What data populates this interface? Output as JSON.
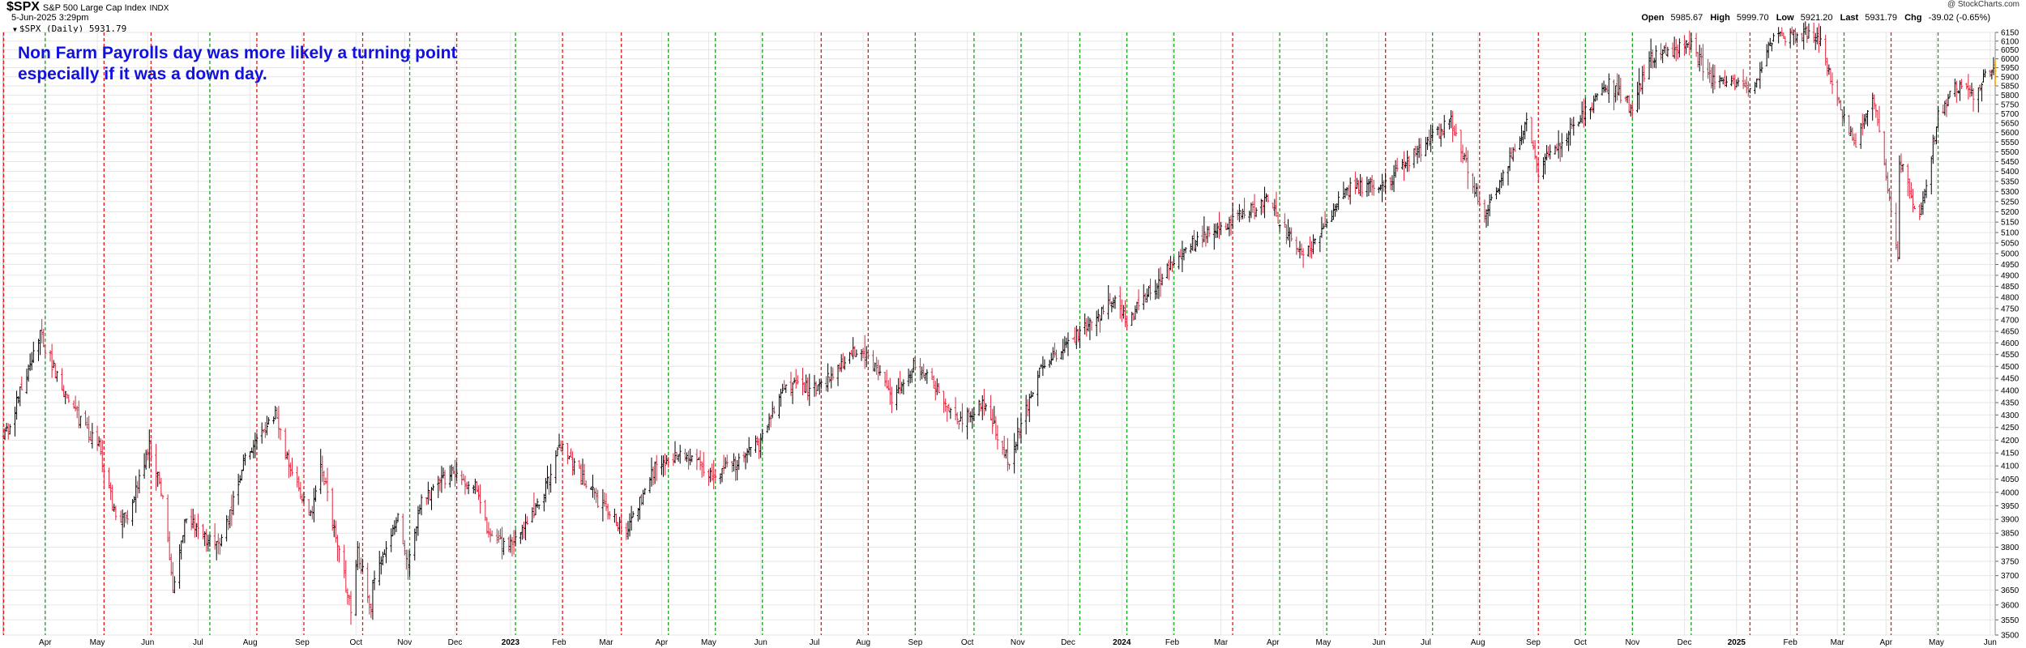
{
  "header": {
    "symbol": "$SPX",
    "name": "S&P 500 Large Cap Index",
    "exchange": "INDX",
    "date": "5-Jun-2025 3:29pm",
    "legend": "$SPX (Daily) 5931.79",
    "watermark": "@ StockCharts.com",
    "quote": {
      "open_label": "Open",
      "open": "5985.67",
      "high_label": "High",
      "high": "5999.70",
      "low_label": "Low",
      "low": "5921.20",
      "last_label": "Last",
      "last": "5931.79",
      "chg_label": "Chg",
      "chg": "-39.02 (-0.65%)"
    }
  },
  "annotation": {
    "line1": "Non Farm Payrolls day was more likely a turning point",
    "line2": "especially if it was a down day."
  },
  "colors": {
    "up_bar": "#000000",
    "down_bar": "#e0243c",
    "nfp_down_line": "#e01818",
    "nfp_up_line": "#18a018",
    "grid": "#e6e6e6",
    "annotation": "#1010e0",
    "last_bar": "#f0a000"
  },
  "chart_data": {
    "type": "ohlc",
    "interval": "daily",
    "x_range": [
      "2022-03-07",
      "2025-06-05"
    ],
    "ylim": [
      3500,
      6150
    ],
    "y_scale": "log",
    "y_axis_side": "right",
    "y_ticks": [
      3500,
      3550,
      3600,
      3650,
      3700,
      3750,
      3800,
      3850,
      3900,
      3950,
      4000,
      4050,
      4100,
      4150,
      4200,
      4250,
      4300,
      4350,
      4400,
      4450,
      4500,
      4550,
      4600,
      4650,
      4700,
      4750,
      4800,
      4850,
      4900,
      4950,
      5000,
      5050,
      5100,
      5150,
      5200,
      5250,
      5300,
      5350,
      5400,
      5450,
      5500,
      5550,
      5600,
      5650,
      5700,
      5750,
      5800,
      5850,
      5900,
      5950,
      6000,
      6050,
      6100,
      6150
    ],
    "x_labels": [
      {
        "label": "Apr",
        "date": "2022-04-01"
      },
      {
        "label": "May",
        "date": "2022-05-02"
      },
      {
        "label": "Jun",
        "date": "2022-06-01"
      },
      {
        "label": "Jul",
        "date": "2022-07-01"
      },
      {
        "label": "Aug",
        "date": "2022-08-01"
      },
      {
        "label": "Sep",
        "date": "2022-09-01"
      },
      {
        "label": "Oct",
        "date": "2022-10-03"
      },
      {
        "label": "Nov",
        "date": "2022-11-01"
      },
      {
        "label": "Dec",
        "date": "2022-12-01"
      },
      {
        "label": "2023",
        "date": "2023-01-03",
        "bold": true
      },
      {
        "label": "Feb",
        "date": "2023-02-01"
      },
      {
        "label": "Mar",
        "date": "2023-03-01"
      },
      {
        "label": "Apr",
        "date": "2023-04-03"
      },
      {
        "label": "May",
        "date": "2023-05-01"
      },
      {
        "label": "Jun",
        "date": "2023-06-01"
      },
      {
        "label": "Jul",
        "date": "2023-07-03"
      },
      {
        "label": "Aug",
        "date": "2023-08-01"
      },
      {
        "label": "Sep",
        "date": "2023-09-01"
      },
      {
        "label": "Oct",
        "date": "2023-10-02"
      },
      {
        "label": "Nov",
        "date": "2023-11-01"
      },
      {
        "label": "Dec",
        "date": "2023-12-01"
      },
      {
        "label": "2024",
        "date": "2024-01-02",
        "bold": true
      },
      {
        "label": "Feb",
        "date": "2024-02-01"
      },
      {
        "label": "Mar",
        "date": "2024-03-01"
      },
      {
        "label": "Apr",
        "date": "2024-04-01"
      },
      {
        "label": "May",
        "date": "2024-05-01"
      },
      {
        "label": "Jun",
        "date": "2024-06-03"
      },
      {
        "label": "Jul",
        "date": "2024-07-01"
      },
      {
        "label": "Aug",
        "date": "2024-08-01"
      },
      {
        "label": "Sep",
        "date": "2024-09-03"
      },
      {
        "label": "Oct",
        "date": "2024-10-01"
      },
      {
        "label": "Nov",
        "date": "2024-11-01"
      },
      {
        "label": "Dec",
        "date": "2024-12-02"
      },
      {
        "label": "2025",
        "date": "2025-01-02",
        "bold": true
      },
      {
        "label": "Feb",
        "date": "2025-02-03"
      },
      {
        "label": "Mar",
        "date": "2025-03-03"
      },
      {
        "label": "Apr",
        "date": "2025-04-01"
      },
      {
        "label": "May",
        "date": "2025-05-01"
      },
      {
        "label": "Jun",
        "date": "2025-06-02"
      }
    ],
    "nfp_markers": [
      {
        "date": "2022-03-04",
        "direction": "down"
      },
      {
        "date": "2022-04-01",
        "direction": "up"
      },
      {
        "date": "2022-05-06",
        "direction": "down"
      },
      {
        "date": "2022-06-03",
        "direction": "down"
      },
      {
        "date": "2022-07-08",
        "direction": "up"
      },
      {
        "date": "2022-08-05",
        "direction": "down"
      },
      {
        "date": "2022-09-02",
        "direction": "down"
      },
      {
        "date": "2022-10-07",
        "direction": "down"
      },
      {
        "date": "2022-11-04",
        "direction": "up"
      },
      {
        "date": "2022-12-02",
        "direction": "down"
      },
      {
        "date": "2023-01-06",
        "direction": "up"
      },
      {
        "date": "2023-02-03",
        "direction": "down"
      },
      {
        "date": "2023-03-10",
        "direction": "down"
      },
      {
        "date": "2023-04-07",
        "direction": "up"
      },
      {
        "date": "2023-05-05",
        "direction": "up"
      },
      {
        "date": "2023-06-02",
        "direction": "up"
      },
      {
        "date": "2023-07-07",
        "direction": "down"
      },
      {
        "date": "2023-08-04",
        "direction": "down"
      },
      {
        "date": "2023-09-01",
        "direction": "up"
      },
      {
        "date": "2023-10-06",
        "direction": "up"
      },
      {
        "date": "2023-11-03",
        "direction": "up"
      },
      {
        "date": "2023-12-08",
        "direction": "up"
      },
      {
        "date": "2024-01-05",
        "direction": "up"
      },
      {
        "date": "2024-02-02",
        "direction": "up"
      },
      {
        "date": "2024-03-08",
        "direction": "down"
      },
      {
        "date": "2024-04-05",
        "direction": "up"
      },
      {
        "date": "2024-05-03",
        "direction": "up"
      },
      {
        "date": "2024-06-07",
        "direction": "down"
      },
      {
        "date": "2024-07-05",
        "direction": "up"
      },
      {
        "date": "2024-08-02",
        "direction": "down"
      },
      {
        "date": "2024-09-06",
        "direction": "down"
      },
      {
        "date": "2024-10-04",
        "direction": "up"
      },
      {
        "date": "2024-11-01",
        "direction": "up"
      },
      {
        "date": "2024-12-06",
        "direction": "up"
      },
      {
        "date": "2025-01-10",
        "direction": "down"
      },
      {
        "date": "2025-02-07",
        "direction": "down"
      },
      {
        "date": "2025-03-07",
        "direction": "up"
      },
      {
        "date": "2025-04-04",
        "direction": "down"
      },
      {
        "date": "2025-05-02",
        "direction": "up"
      }
    ],
    "close_path": [
      [
        "2022-03-07",
        4201
      ],
      [
        "2022-03-14",
        4330
      ],
      [
        "2022-03-29",
        4631
      ],
      [
        "2022-04-11",
        4412
      ],
      [
        "2022-04-22",
        4271
      ],
      [
        "2022-05-03",
        4175
      ],
      [
        "2022-05-12",
        3930
      ],
      [
        "2022-05-19",
        3900
      ],
      [
        "2022-06-02",
        4176
      ],
      [
        "2022-06-09",
        4017
      ],
      [
        "2022-06-16",
        3667
      ],
      [
        "2022-06-24",
        3911
      ],
      [
        "2022-07-05",
        3831
      ],
      [
        "2022-07-14",
        3790
      ],
      [
        "2022-07-29",
        4130
      ],
      [
        "2022-08-16",
        4305
      ],
      [
        "2022-08-26",
        4057
      ],
      [
        "2022-09-06",
        3908
      ],
      [
        "2022-09-12",
        4110
      ],
      [
        "2022-09-30",
        3585
      ],
      [
        "2022-10-04",
        3790
      ],
      [
        "2022-10-12",
        3577
      ],
      [
        "2022-10-13",
        3669
      ],
      [
        "2022-10-28",
        3901
      ],
      [
        "2022-11-03",
        3720
      ],
      [
        "2022-11-10",
        3956
      ],
      [
        "2022-11-30",
        4080
      ],
      [
        "2022-12-13",
        4019
      ],
      [
        "2022-12-22",
        3822
      ],
      [
        "2023-01-05",
        3808
      ],
      [
        "2023-01-18",
        3928
      ],
      [
        "2023-02-02",
        4179
      ],
      [
        "2023-02-24",
        3970
      ],
      [
        "2023-03-13",
        3855
      ],
      [
        "2023-03-31",
        4109
      ],
      [
        "2023-04-18",
        4154
      ],
      [
        "2023-05-04",
        4061
      ],
      [
        "2023-05-31",
        4180
      ],
      [
        "2023-06-15",
        4425
      ],
      [
        "2023-07-06",
        4411
      ],
      [
        "2023-07-31",
        4589
      ],
      [
        "2023-08-18",
        4369
      ],
      [
        "2023-09-01",
        4515
      ],
      [
        "2023-09-27",
        4274
      ],
      [
        "2023-10-12",
        4349
      ],
      [
        "2023-10-27",
        4117
      ],
      [
        "2023-11-14",
        4495
      ],
      [
        "2023-12-01",
        4594
      ],
      [
        "2023-12-28",
        4783
      ],
      [
        "2024-01-05",
        4697
      ],
      [
        "2024-02-09",
        5026
      ],
      [
        "2024-03-28",
        5254
      ],
      [
        "2024-04-19",
        4967
      ],
      [
        "2024-05-15",
        5308
      ],
      [
        "2024-06-07",
        5346
      ],
      [
        "2024-07-16",
        5667
      ],
      [
        "2024-08-05",
        5186
      ],
      [
        "2024-08-30",
        5648
      ],
      [
        "2024-09-06",
        5408
      ],
      [
        "2024-10-18",
        5864
      ],
      [
        "2024-11-01",
        5728
      ],
      [
        "2024-11-11",
        6001
      ],
      [
        "2024-12-06",
        6090
      ],
      [
        "2024-12-18",
        5872
      ],
      [
        "2025-01-13",
        5836
      ],
      [
        "2025-01-23",
        6119
      ],
      [
        "2025-02-19",
        6144
      ],
      [
        "2025-03-13",
        5521
      ],
      [
        "2025-03-25",
        5777
      ],
      [
        "2025-04-08",
        4982
      ],
      [
        "2025-04-09",
        5457
      ],
      [
        "2025-04-21",
        5158
      ],
      [
        "2025-05-02",
        5687
      ],
      [
        "2025-05-12",
        5844
      ],
      [
        "2025-05-23",
        5802
      ],
      [
        "2025-06-04",
        5970
      ],
      [
        "2025-06-05",
        5931.79
      ]
    ]
  }
}
